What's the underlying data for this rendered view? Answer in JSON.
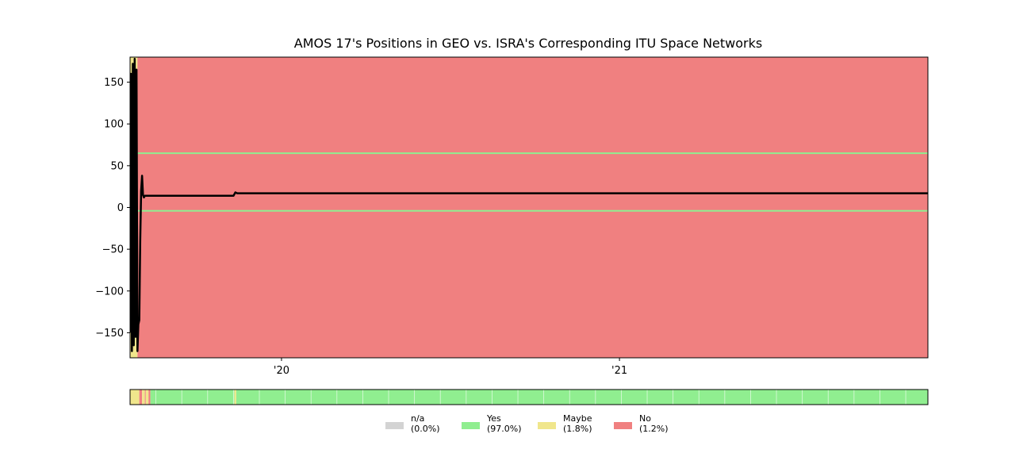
{
  "chart_data": {
    "type": "line",
    "title": "AMOS 17's Positions in GEO vs. ISRA's Corresponding ITU Space Networks",
    "xlabel": "",
    "ylabel": "",
    "xlim": [
      "2019-07-21",
      "2021-12-01"
    ],
    "ylim": [
      -180,
      180
    ],
    "x_ticks": [
      {
        "date": "2020-01-01",
        "label": "'20"
      },
      {
        "date": "2021-01-01",
        "label": "'21"
      }
    ],
    "y_ticks": [
      {
        "value": 150,
        "label": "150"
      },
      {
        "value": 100,
        "label": "100"
      },
      {
        "value": 50,
        "label": "50"
      },
      {
        "value": 0,
        "label": "0"
      },
      {
        "value": -50,
        "label": "−50"
      },
      {
        "value": -100,
        "label": "−100"
      },
      {
        "value": -150,
        "label": "−150"
      }
    ],
    "background_bands": [
      {
        "x_start": "2019-07-21",
        "x_end": "2019-07-29",
        "status": "Maybe"
      },
      {
        "x_start": "2019-07-29",
        "x_end": "2021-12-01",
        "status": "No"
      }
    ],
    "reference_lines": [
      {
        "y": 65,
        "color": "#90ee90"
      },
      {
        "y": -4,
        "color": "#90ee90"
      }
    ],
    "series": [
      {
        "color": "#000000",
        "x": [
          "2019-07-21",
          "2019-07-22",
          "2019-07-23",
          "2019-07-24",
          "2019-07-25",
          "2019-07-26",
          "2019-07-27",
          "2019-07-28",
          "2019-07-29",
          "2019-07-30",
          "2019-07-31",
          "2019-08-01",
          "2019-08-02",
          "2019-08-03",
          "2019-08-04",
          "2019-08-05",
          "2019-08-06",
          "2019-08-07",
          "2019-08-08",
          "2019-08-10",
          "2019-11-10",
          "2019-11-12",
          "2019-11-14",
          "2021-12-01"
        ],
        "y": [
          -150,
          160,
          -172,
          172,
          -165,
          178,
          -155,
          165,
          -172,
          -140,
          -135,
          -40,
          20,
          38,
          15,
          12,
          14,
          14,
          14,
          14,
          14,
          18,
          17,
          17
        ]
      }
    ],
    "status_strip": {
      "segments": [
        {
          "x_start": "2019-07-21",
          "x_end": "2019-07-24",
          "status": "Maybe"
        },
        {
          "x_start": "2019-07-24",
          "x_end": "2019-07-31",
          "status": "Maybe"
        },
        {
          "x_start": "2019-07-31",
          "x_end": "2019-08-03",
          "status": "No"
        },
        {
          "x_start": "2019-08-03",
          "x_end": "2019-08-06",
          "status": "Maybe"
        },
        {
          "x_start": "2019-08-06",
          "x_end": "2019-08-07",
          "status": "No"
        },
        {
          "x_start": "2019-08-07",
          "x_end": "2019-08-10",
          "status": "Maybe"
        },
        {
          "x_start": "2019-08-10",
          "x_end": "2019-08-12",
          "status": "No"
        },
        {
          "x_start": "2019-08-12",
          "x_end": "2019-11-11",
          "status": "Yes"
        },
        {
          "x_start": "2019-11-11",
          "x_end": "2019-11-13",
          "status": "Maybe"
        },
        {
          "x_start": "2019-11-13",
          "x_end": "2021-12-01",
          "status": "Yes"
        }
      ]
    },
    "legend": {
      "placement": "bottom-center",
      "items": [
        {
          "label": "n/a\n(0.0%)",
          "status": "n/a",
          "color": "#d3d3d3"
        },
        {
          "label": "Yes\n(97.0%)",
          "status": "Yes",
          "color": "#90ee90"
        },
        {
          "label": "Maybe\n(1.8%)",
          "status": "Maybe",
          "color": "#f0e68c"
        },
        {
          "label": "No\n(1.2%)",
          "status": "No",
          "color": "#f08080"
        }
      ]
    },
    "colors": {
      "n/a": "#d3d3d3",
      "Yes": "#90ee90",
      "Maybe": "#f0e68c",
      "No": "#f08080",
      "line": "#000000"
    },
    "grid": false
  }
}
